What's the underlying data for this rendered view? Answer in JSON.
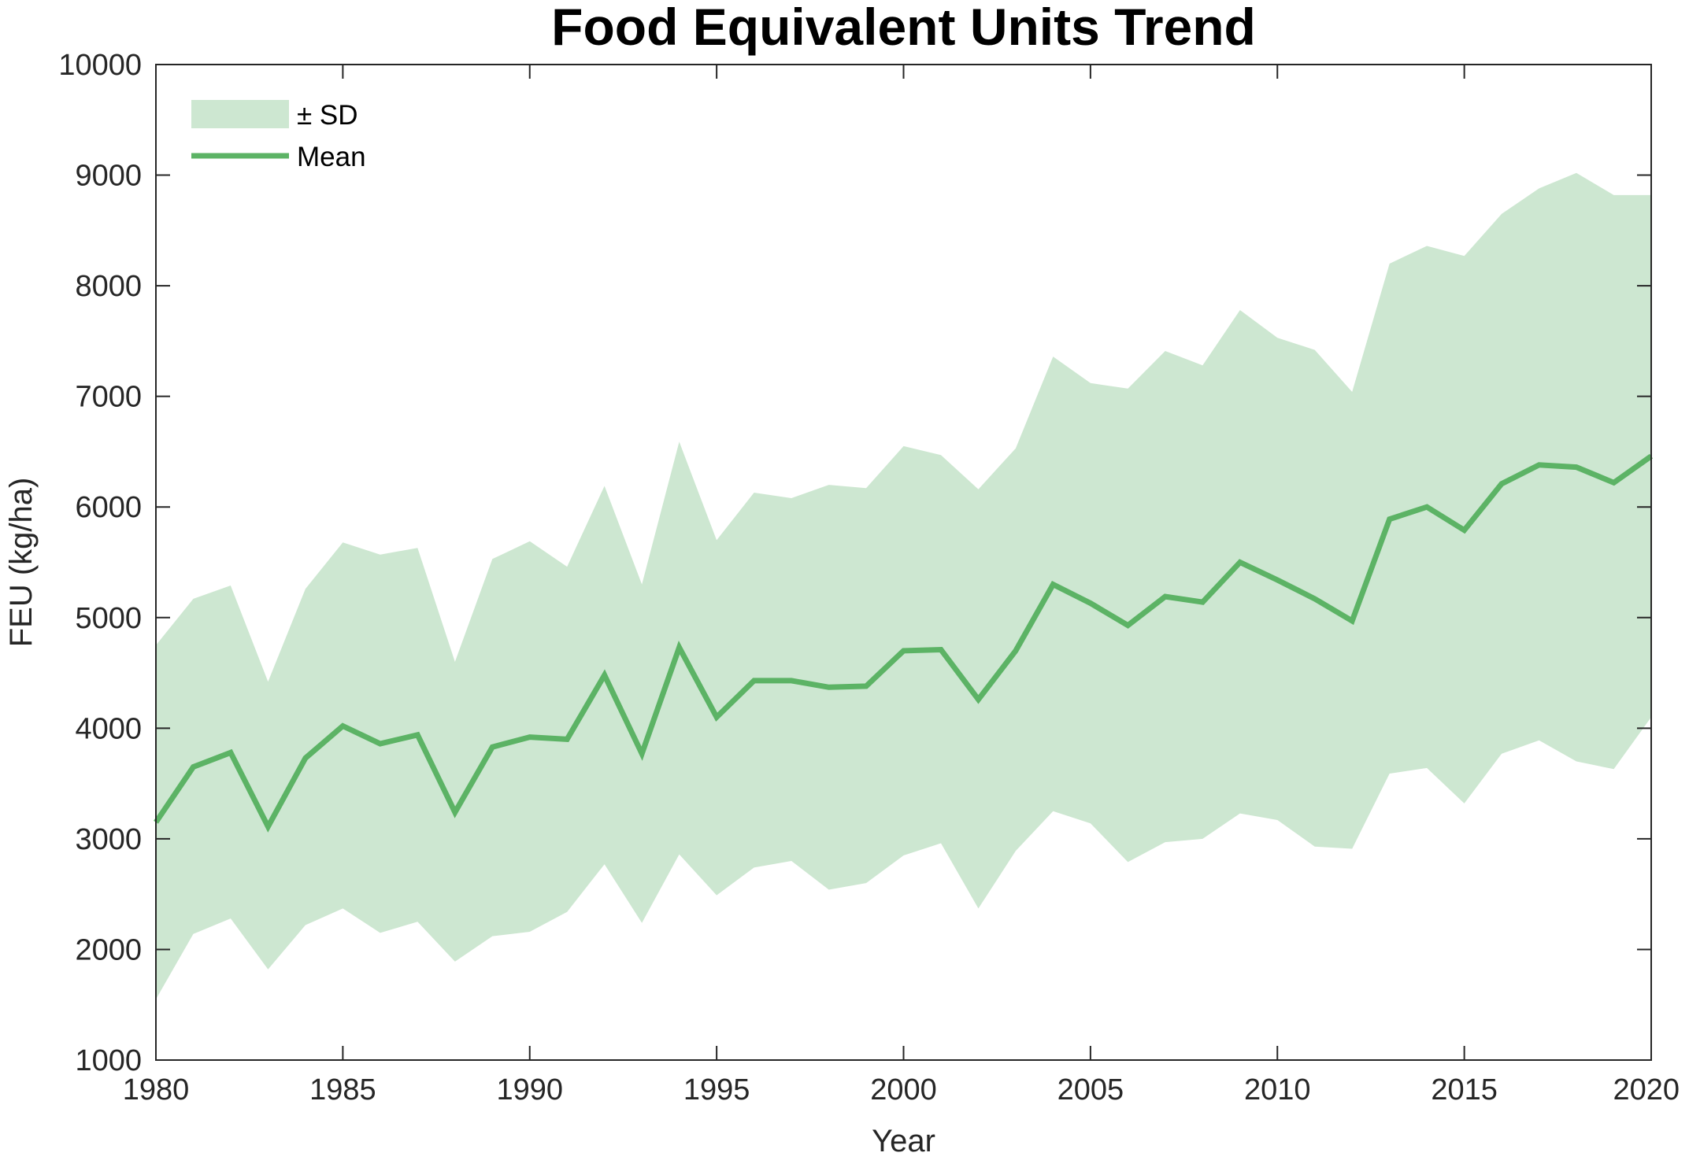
{
  "chart_data": {
    "type": "area",
    "title": "Food Equivalent Units Trend",
    "xlabel": "Year",
    "ylabel": "FEU (kg/ha)",
    "xlim": [
      1980,
      2020
    ],
    "ylim": [
      1000,
      10000
    ],
    "xticks": [
      1980,
      1985,
      1990,
      1995,
      2000,
      2005,
      2010,
      2015,
      2020
    ],
    "yticks": [
      1000,
      2000,
      3000,
      4000,
      5000,
      6000,
      7000,
      8000,
      9000,
      10000
    ],
    "grid": false,
    "legend_position": "top-left",
    "x": [
      1980,
      1981,
      1982,
      1983,
      1984,
      1985,
      1986,
      1987,
      1988,
      1989,
      1990,
      1991,
      1992,
      1993,
      1994,
      1995,
      1996,
      1997,
      1998,
      1999,
      2000,
      2001,
      2002,
      2003,
      2004,
      2005,
      2006,
      2007,
      2008,
      2009,
      2010,
      2011,
      2012,
      2013,
      2014,
      2015,
      2016,
      2017,
      2018,
      2019,
      2020
    ],
    "series": [
      {
        "name": "Mean",
        "kind": "line",
        "color": "#5cb365",
        "values": [
          3150,
          3650,
          3780,
          3110,
          3730,
          4020,
          3860,
          3940,
          3240,
          3830,
          3920,
          3900,
          4480,
          3770,
          4730,
          4100,
          4430,
          4430,
          4370,
          4380,
          4700,
          4710,
          4260,
          4700,
          5300,
          5130,
          4930,
          5190,
          5140,
          5500,
          5340,
          5170,
          4970,
          5890,
          6000,
          5790,
          6210,
          6380,
          6360,
          6220,
          6460
        ]
      },
      {
        "name": "± SD",
        "kind": "band",
        "color": "#cde7d1",
        "upper": [
          4750,
          5170,
          5290,
          4420,
          5260,
          5680,
          5570,
          5630,
          4600,
          5530,
          5690,
          5460,
          6190,
          5300,
          6590,
          5700,
          6130,
          6080,
          6200,
          6170,
          6550,
          6470,
          6160,
          6530,
          7360,
          7120,
          7070,
          7410,
          7280,
          7780,
          7530,
          7420,
          7040,
          8200,
          8360,
          8270,
          8650,
          8880,
          9020,
          8820,
          8820
        ],
        "lower": [
          1550,
          2140,
          2280,
          1820,
          2220,
          2370,
          2150,
          2250,
          1890,
          2120,
          2160,
          2340,
          2770,
          2240,
          2860,
          2490,
          2740,
          2800,
          2540,
          2600,
          2850,
          2960,
          2370,
          2890,
          3250,
          3140,
          2790,
          2970,
          3000,
          3230,
          3170,
          2930,
          2910,
          3590,
          3640,
          3320,
          3770,
          3890,
          3700,
          3630,
          4100
        ]
      }
    ],
    "legend": [
      {
        "label": "± SD",
        "kind": "band"
      },
      {
        "label": "Mean",
        "kind": "line"
      }
    ]
  }
}
